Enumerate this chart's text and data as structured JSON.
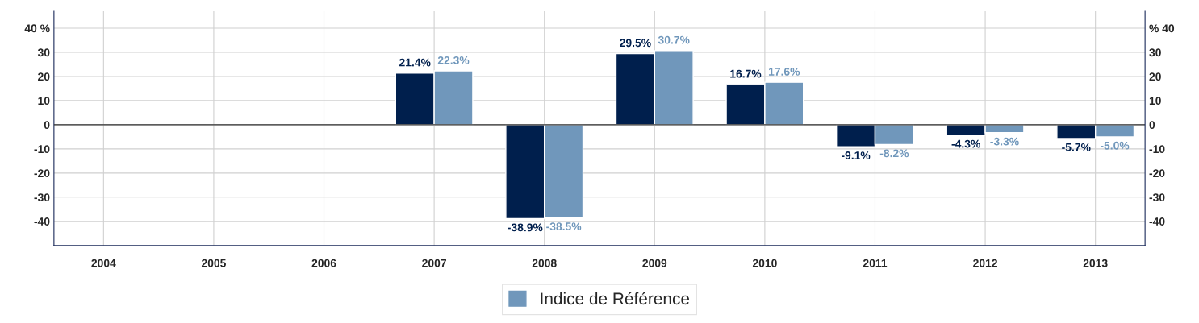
{
  "chart_data": {
    "type": "bar",
    "categories": [
      "2004",
      "2005",
      "2006",
      "2007",
      "2008",
      "2009",
      "2010",
      "2011",
      "2012",
      "2013"
    ],
    "series": [
      {
        "color": "#001f4d",
        "values": [
          null,
          null,
          null,
          21.4,
          -38.9,
          29.5,
          16.7,
          -9.1,
          -4.3,
          -5.7
        ],
        "value_labels": [
          null,
          null,
          null,
          "21.4%",
          "-38.9%",
          "29.5%",
          "16.7%",
          "-9.1%",
          "-4.3%",
          "-5.7%"
        ]
      },
      {
        "name": "Indice de Référence",
        "color": "#7097bb",
        "values": [
          null,
          null,
          null,
          22.3,
          -38.5,
          30.7,
          17.6,
          -8.2,
          -3.3,
          -5.0
        ],
        "value_labels": [
          null,
          null,
          null,
          "22.3%",
          "-38.5%",
          "30.7%",
          "17.6%",
          "-8.2%",
          "-3.3%",
          "-5.0%"
        ]
      }
    ],
    "ylim": [
      -50,
      47
    ],
    "yticks": [
      {
        "value": 40,
        "label": "40 %"
      },
      30,
      20,
      10,
      0,
      -10,
      -20,
      -30,
      -40
    ],
    "y2lim": [
      -50,
      47
    ],
    "y2ticks": [
      {
        "value": 40,
        "label": "% 40"
      },
      30,
      20,
      10,
      0,
      -10,
      -20,
      -30,
      -40
    ],
    "grid": true,
    "legend": "bottom"
  }
}
